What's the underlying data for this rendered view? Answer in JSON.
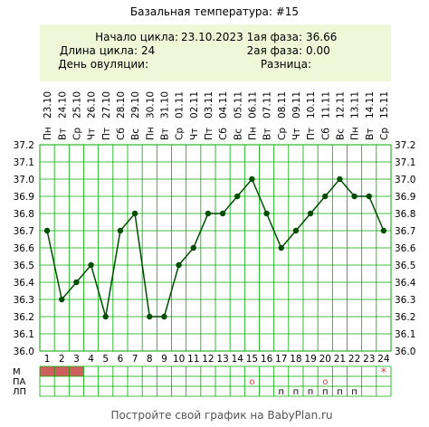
{
  "title": "Базальная температура: #15",
  "info": {
    "start_label": "Начало цикла:",
    "start_value": "23.10.2023",
    "length_label": "Длина цикла:",
    "length_value": "24",
    "ovulation_label": "День овуляции:",
    "ovulation_value": "",
    "phase1_label": "1ая фаза:",
    "phase1_value": "36.66",
    "phase2_label": "2ая фаза:",
    "phase2_value": "0.00",
    "diff_label": "Разница:",
    "diff_value": ""
  },
  "footer": "Постройте свой график на BabyPlan.ru",
  "colors": {
    "line": "#004d00",
    "grid": "#00aa00",
    "info_bg": "#eef8d8",
    "menses": "#d06060",
    "mark": "#e04040"
  },
  "chart_data": {
    "type": "line",
    "days": [
      "1",
      "2",
      "3",
      "4",
      "5",
      "6",
      "7",
      "8",
      "9",
      "10",
      "11",
      "12",
      "13",
      "14",
      "15",
      "16",
      "17",
      "18",
      "19",
      "20",
      "21",
      "22",
      "23",
      "24"
    ],
    "weekdays": [
      "Пн",
      "Вт",
      "Ср",
      "Чт",
      "Пт",
      "Сб",
      "Вс",
      "Пн",
      "Вт",
      "Ср",
      "Чт",
      "Пт",
      "Сб",
      "Вс",
      "Пн",
      "Вт",
      "Ср",
      "Чт",
      "Пт",
      "Сб",
      "Вс",
      "Пн",
      "Вт",
      "Ср"
    ],
    "dates": [
      "23.10",
      "24.10",
      "25.10",
      "26.10",
      "27.10",
      "28.10",
      "29.10",
      "30.10",
      "31.10",
      "01.11",
      "02.11",
      "03.11",
      "04.11",
      "05.11",
      "06.11",
      "07.11",
      "08.11",
      "09.11",
      "10.11",
      "11.11",
      "12.11",
      "13.11",
      "14.11",
      "15.11"
    ],
    "values": [
      36.7,
      36.3,
      36.4,
      36.5,
      36.2,
      36.7,
      36.8,
      36.2,
      36.2,
      36.5,
      36.6,
      36.8,
      36.8,
      36.9,
      37.0,
      36.8,
      36.6,
      36.7,
      36.8,
      36.9,
      37.0,
      36.9,
      36.9,
      36.7
    ],
    "ylim": [
      36.0,
      37.2
    ],
    "ytick_labels": [
      "36.0",
      "36.1",
      "36.2",
      "36.3",
      "36.4",
      "36.5",
      "36.6",
      "36.7",
      "36.8",
      "36.9",
      "37.0",
      "37.1",
      "37.2"
    ],
    "grid": true,
    "rows": [
      {
        "label": "М",
        "menses_days": [
          1,
          2,
          3
        ],
        "star_days": [
          24
        ],
        "star_symbol": "*"
      },
      {
        "label": "ПА",
        "circle_days": [
          15,
          20
        ],
        "circle_symbol": "o"
      },
      {
        "label": "ЛП",
        "p_days": [
          17,
          18,
          19,
          20,
          21,
          22
        ],
        "p_symbol": "п"
      }
    ]
  }
}
